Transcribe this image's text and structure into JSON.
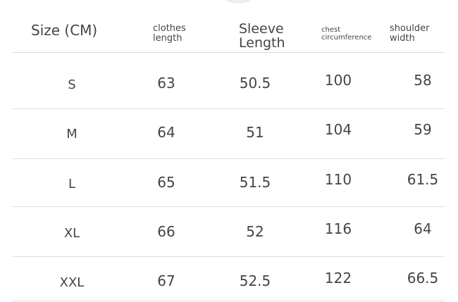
{
  "headers": {
    "size": "Size (CM)",
    "clothes_length": [
      "clothes",
      "length"
    ],
    "sleeve_length": [
      "Sleeve",
      "Length"
    ],
    "chest": [
      "chest",
      "circumference"
    ],
    "shoulder": [
      "shoulder",
      "width"
    ]
  },
  "rows": [
    {
      "size": "S",
      "clothes_length": "63",
      "sleeve_length": "50.5",
      "chest": "100",
      "shoulder": "58"
    },
    {
      "size": "M",
      "clothes_length": "64",
      "sleeve_length": "51",
      "chest": "104",
      "shoulder": "59"
    },
    {
      "size": "L",
      "clothes_length": "65",
      "sleeve_length": "51.5",
      "chest": "110",
      "shoulder": "61.5"
    },
    {
      "size": "XL",
      "clothes_length": "66",
      "sleeve_length": "52",
      "chest": "116",
      "shoulder": "64"
    },
    {
      "size": "XXL",
      "clothes_length": "67",
      "sleeve_length": "52.5",
      "chest": "122",
      "shoulder": "66.5"
    }
  ]
}
